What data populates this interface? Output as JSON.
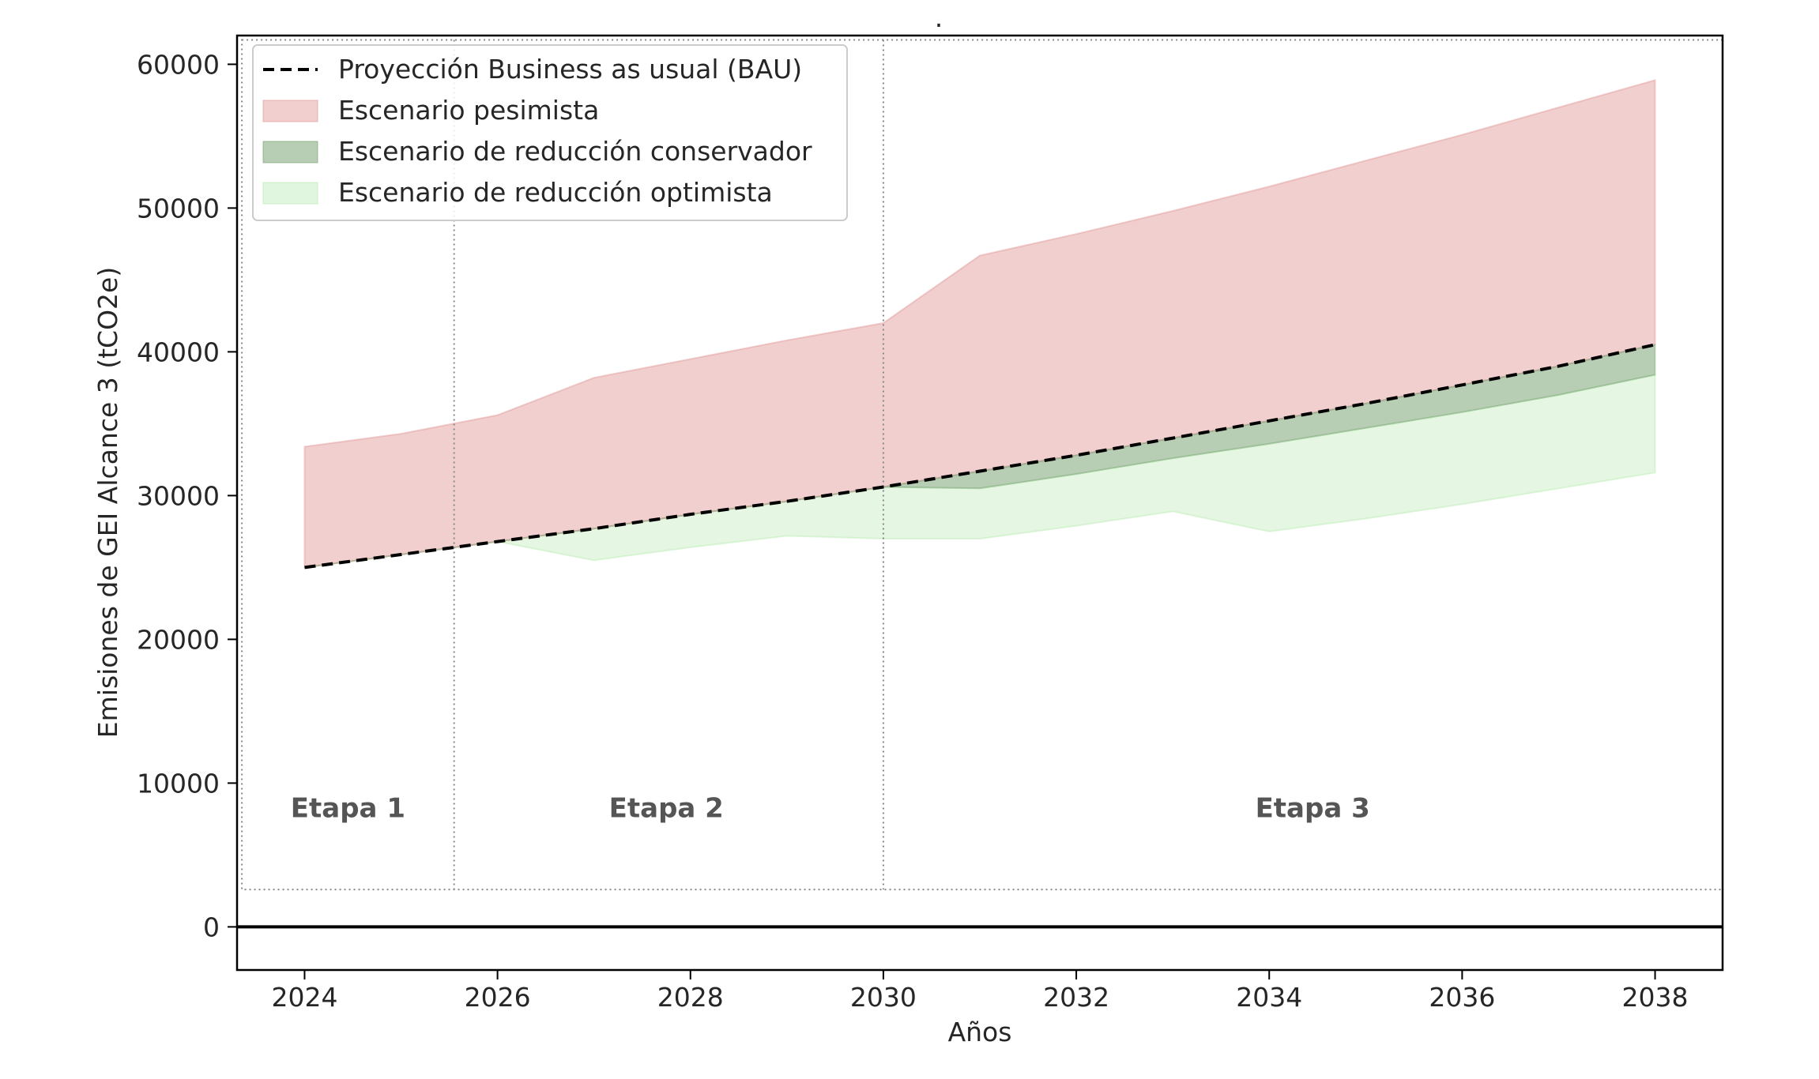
{
  "chart_data": {
    "type": "area",
    "title": ".",
    "xlabel": "Años",
    "ylabel": "Emisiones de GEI Alcance 3 (tCO2e)",
    "xlim": [
      2023.3,
      2038.7
    ],
    "ylim": [
      -3000,
      62000
    ],
    "xticks": [
      2024,
      2026,
      2028,
      2030,
      2032,
      2034,
      2036,
      2038
    ],
    "yticks": [
      0,
      10000,
      20000,
      30000,
      40000,
      50000,
      60000
    ],
    "x": [
      2024,
      2025,
      2026,
      2027,
      2028,
      2029,
      2030,
      2031,
      2032,
      2033,
      2034,
      2035,
      2036,
      2037,
      2038
    ],
    "series": [
      {
        "name": "Proyección Business as usual (BAU)",
        "kind": "line",
        "style": "dashed",
        "color": "#000000",
        "values": [
          25000,
          25900,
          26800,
          27700,
          28700,
          29600,
          30600,
          31700,
          32800,
          34000,
          35200,
          36400,
          37700,
          39000,
          40500
        ]
      },
      {
        "name": "Escenario pesimista",
        "kind": "band",
        "color": "#d98080",
        "lower": [
          25000,
          25900,
          26800,
          27700,
          28700,
          29600,
          30600,
          31700,
          32800,
          34000,
          35200,
          36400,
          37700,
          39000,
          40500
        ],
        "upper": [
          33400,
          34300,
          35600,
          38200,
          39500,
          40800,
          42000,
          46700,
          48200,
          49800,
          51500,
          53300,
          55100,
          57000,
          58900
        ]
      },
      {
        "name": "Escenario de reducción conservador",
        "kind": "band",
        "color": "#6f9c6a",
        "lower": [
          25000,
          25900,
          26800,
          27700,
          28700,
          29600,
          30600,
          30500,
          31500,
          32600,
          33600,
          34700,
          35800,
          37000,
          38400
        ],
        "upper": [
          25000,
          25900,
          26800,
          27700,
          28700,
          29600,
          30600,
          31700,
          32800,
          34000,
          35200,
          36400,
          37700,
          39000,
          40500
        ]
      },
      {
        "name": "Escenario de reducción optimista",
        "kind": "band",
        "color": "#a8e6a0",
        "lower": [
          25000,
          25900,
          26800,
          25500,
          26400,
          27200,
          27000,
          27000,
          27900,
          28900,
          27500,
          28400,
          29400,
          30500,
          31600
        ],
        "upper": [
          25000,
          25900,
          26800,
          27700,
          28700,
          29600,
          30600,
          30500,
          31500,
          32600,
          33600,
          34700,
          35800,
          37000,
          38400
        ]
      }
    ],
    "stages": [
      {
        "label": "Etapa 1",
        "x": 2024.45
      },
      {
        "label": "Etapa 2",
        "x": 2027.75
      },
      {
        "label": "Etapa 3",
        "x": 2034.45
      }
    ],
    "stage_dividers_x": [
      2025.55,
      2030
    ],
    "stage_label_y": 8300,
    "stage_box": {
      "x0": 2023.35,
      "x1": 2038.7,
      "y0": 2600,
      "y1": 61700
    },
    "zero_line": 0,
    "legend_position": "top-left",
    "grid": false
  }
}
